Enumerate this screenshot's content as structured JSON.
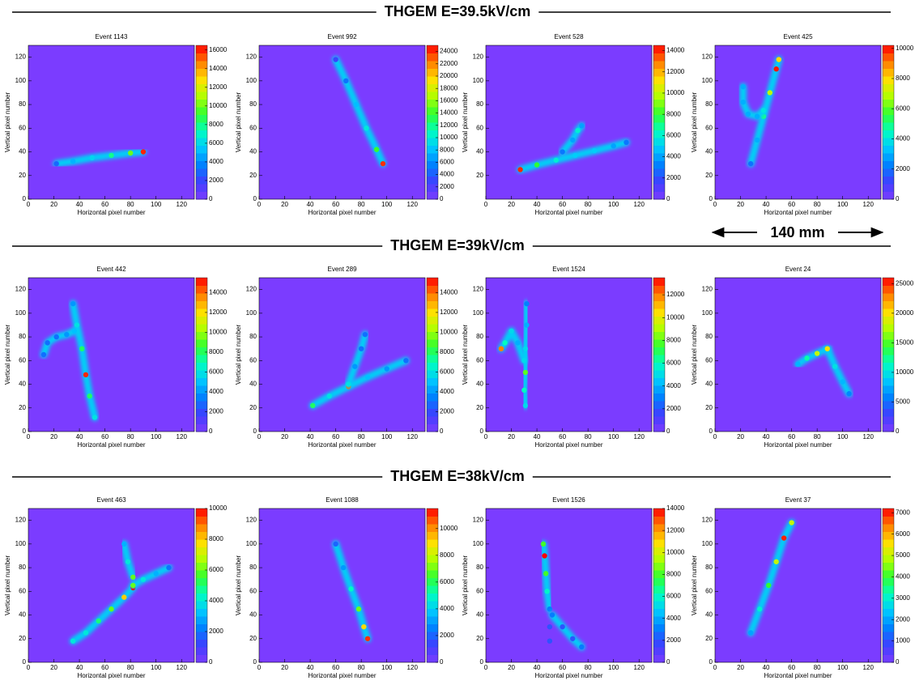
{
  "headings": [
    "THGEM E=39.5kV/cm",
    "THGEM E=39kV/cm",
    "THGEM E=38kV/cm"
  ],
  "annotation": "140 mm",
  "colormap": [
    "#7b3cff",
    "#3f3fff",
    "#0080ff",
    "#00c8ff",
    "#00ffc0",
    "#30ff30",
    "#b0ff00",
    "#ffe000",
    "#ff8000",
    "#ff0000"
  ],
  "chart_data": [
    {
      "type": "heatmap",
      "title": "Event 1143",
      "xlabel": "Horizontal pixel number",
      "ylabel": "Vertical pixel number",
      "xlim": [
        0,
        130
      ],
      "ylim": [
        0,
        130
      ],
      "xticks": [
        0,
        20,
        40,
        60,
        80,
        100,
        120
      ],
      "yticks": [
        0,
        20,
        40,
        60,
        80,
        100,
        120
      ],
      "zlim": [
        0,
        16500
      ],
      "zticks": [
        0,
        2000,
        4000,
        6000,
        8000,
        10000,
        12000,
        14000,
        16000
      ],
      "series": [
        {
          "x": [
            22,
            35,
            50,
            65,
            80,
            90
          ],
          "y": [
            30,
            32,
            35,
            37,
            39,
            40
          ],
          "values": [
            3000,
            5000,
            6000,
            8000,
            10000,
            16000
          ]
        }
      ]
    },
    {
      "type": "heatmap",
      "title": "Event 992",
      "xlabel": "Horizontal pixel number",
      "ylabel": "Vertical pixel number",
      "xlim": [
        0,
        130
      ],
      "ylim": [
        0,
        130
      ],
      "xticks": [
        0,
        20,
        40,
        60,
        80,
        100,
        120
      ],
      "yticks": [
        0,
        20,
        40,
        60,
        80,
        100,
        120
      ],
      "zlim": [
        0,
        25000
      ],
      "zticks": [
        0,
        2000,
        4000,
        6000,
        8000,
        10000,
        12000,
        14000,
        16000,
        18000,
        20000,
        22000,
        24000
      ],
      "series": [
        {
          "x": [
            60,
            68,
            76,
            84,
            92,
            97
          ],
          "y": [
            118,
            100,
            80,
            60,
            42,
            30
          ],
          "values": [
            3000,
            5000,
            8000,
            10000,
            14000,
            24000
          ]
        }
      ]
    },
    {
      "type": "heatmap",
      "title": "Event 528",
      "xlabel": "Horizontal pixel number",
      "ylabel": "Vertical pixel number",
      "xlim": [
        0,
        130
      ],
      "ylim": [
        0,
        130
      ],
      "xticks": [
        0,
        20,
        40,
        60,
        80,
        100,
        120
      ],
      "yticks": [
        20,
        40,
        60,
        80,
        100,
        120
      ],
      "zlim": [
        0,
        14500
      ],
      "zticks": [
        0,
        2000,
        4000,
        6000,
        8000,
        10000,
        12000,
        14000
      ],
      "series": [
        {
          "x": [
            27,
            40,
            55,
            70,
            85,
            100,
            110
          ],
          "y": [
            25,
            29,
            33,
            37,
            41,
            45,
            48
          ],
          "values": [
            14000,
            8000,
            6000,
            5000,
            5000,
            4000,
            3000
          ]
        },
        {
          "x": [
            60,
            68,
            72,
            75
          ],
          "y": [
            40,
            50,
            58,
            62
          ],
          "values": [
            3000,
            4000,
            6000,
            4000
          ]
        }
      ]
    },
    {
      "type": "heatmap",
      "title": "Event 425",
      "xlabel": "Horizontal pixel number",
      "ylabel": "Vertical pixel number",
      "xlim": [
        0,
        130
      ],
      "ylim": [
        0,
        130
      ],
      "xticks": [
        0,
        20,
        40,
        60,
        80,
        100,
        120
      ],
      "yticks": [
        0,
        20,
        40,
        60,
        80,
        100,
        120
      ],
      "zlim": [
        0,
        10200
      ],
      "zticks": [
        0,
        2000,
        4000,
        6000,
        8000,
        10000
      ],
      "series": [
        {
          "x": [
            28,
            33,
            38,
            43,
            48,
            50
          ],
          "y": [
            30,
            50,
            70,
            90,
            110,
            118
          ],
          "values": [
            2000,
            3000,
            5000,
            7000,
            10000,
            8000
          ]
        },
        {
          "x": [
            22,
            22,
            26,
            33,
            38
          ],
          "y": [
            95,
            82,
            72,
            70,
            75
          ],
          "values": [
            3000,
            3000,
            3000,
            3000,
            4000
          ]
        }
      ]
    },
    {
      "type": "heatmap",
      "title": "Event 442",
      "xlabel": "Horizontal pixel number",
      "ylabel": "Vertical pixel number",
      "xlim": [
        0,
        130
      ],
      "ylim": [
        0,
        130
      ],
      "xticks": [
        0,
        20,
        40,
        60,
        80,
        100,
        120
      ],
      "yticks": [
        0,
        20,
        40,
        60,
        80,
        100,
        120
      ],
      "zlim": [
        0,
        15500
      ],
      "zticks": [
        0,
        2000,
        4000,
        6000,
        8000,
        10000,
        12000,
        14000
      ],
      "series": [
        {
          "x": [
            35,
            38,
            42,
            45,
            48,
            52
          ],
          "y": [
            108,
            90,
            70,
            48,
            30,
            12
          ],
          "values": [
            4000,
            6000,
            8000,
            15000,
            8000,
            6000
          ]
        },
        {
          "x": [
            12,
            15,
            22,
            30,
            36
          ],
          "y": [
            65,
            75,
            80,
            82,
            85
          ],
          "values": [
            3000,
            3000,
            3000,
            4000,
            5000
          ]
        }
      ]
    },
    {
      "type": "heatmap",
      "title": "Event 289",
      "xlabel": "Horizontal pixel number",
      "ylabel": "Vertical pixel number",
      "xlim": [
        0,
        130
      ],
      "ylim": [
        0,
        130
      ],
      "xticks": [
        0,
        20,
        40,
        60,
        80,
        100,
        120
      ],
      "yticks": [
        0,
        20,
        40,
        60,
        80,
        100,
        120
      ],
      "zlim": [
        0,
        15500
      ],
      "zticks": [
        0,
        2000,
        4000,
        6000,
        8000,
        10000,
        12000,
        14000
      ],
      "series": [
        {
          "x": [
            42,
            55,
            70,
            85,
            100,
            115
          ],
          "y": [
            22,
            30,
            38,
            46,
            53,
            60
          ],
          "values": [
            8000,
            6000,
            14000,
            5000,
            4000,
            3000
          ]
        },
        {
          "x": [
            70,
            75,
            80,
            83
          ],
          "y": [
            40,
            55,
            70,
            82
          ],
          "values": [
            6000,
            4000,
            3000,
            3000
          ]
        }
      ]
    },
    {
      "type": "heatmap",
      "title": "Event 1524",
      "xlabel": "Horizontal pixel number",
      "ylabel": "Vertical pixel number",
      "xlim": [
        0,
        130
      ],
      "ylim": [
        0,
        130
      ],
      "xticks": [
        0,
        20,
        40,
        60,
        80,
        100,
        120
      ],
      "yticks": [
        0,
        20,
        40,
        60,
        80,
        100,
        120
      ],
      "zlim": [
        0,
        13500
      ],
      "zticks": [
        0,
        2000,
        4000,
        6000,
        8000,
        10000,
        12000
      ],
      "series": [
        {
          "x": [
            32,
            32,
            31,
            31,
            30,
            31
          ],
          "y": [
            108,
            90,
            70,
            50,
            35,
            22
          ],
          "values": [
            3000,
            4000,
            5000,
            8000,
            6000,
            5000
          ]
        },
        {
          "x": [
            12,
            15,
            20,
            25,
            30
          ],
          "y": [
            70,
            75,
            85,
            75,
            60
          ],
          "values": [
            12000,
            6000,
            5000,
            4000,
            5000
          ]
        }
      ]
    },
    {
      "type": "heatmap",
      "title": "Event 24",
      "xlabel": "Horizontal pixel number",
      "ylabel": "Vertical pixel number",
      "xlim": [
        0,
        130
      ],
      "ylim": [
        0,
        130
      ],
      "xticks": [
        0,
        20,
        40,
        60,
        80,
        100,
        120
      ],
      "yticks": [
        0,
        20,
        40,
        60,
        80,
        100,
        120
      ],
      "zlim": [
        0,
        26000
      ],
      "zticks": [
        0,
        5000,
        10000,
        15000,
        20000,
        25000
      ],
      "series": [
        {
          "x": [
            65,
            72,
            80,
            88
          ],
          "y": [
            57,
            62,
            66,
            70
          ],
          "values": [
            8000,
            12000,
            18000,
            25000
          ]
        },
        {
          "x": [
            88,
            94,
            100,
            105
          ],
          "y": [
            70,
            55,
            42,
            32
          ],
          "values": [
            20000,
            10000,
            8000,
            6000
          ]
        }
      ]
    },
    {
      "type": "heatmap",
      "title": "Event 463",
      "xlabel": "Horizontal pixel number",
      "ylabel": "Vertical pixel number",
      "xlim": [
        0,
        130
      ],
      "ylim": [
        0,
        130
      ],
      "xticks": [
        0,
        20,
        40,
        60,
        80,
        100,
        120
      ],
      "yticks": [
        0,
        20,
        40,
        60,
        80,
        100,
        120
      ],
      "zlim": [
        0,
        10000
      ],
      "zticks": [
        0,
        2000,
        4000,
        6000,
        8000,
        10000
      ],
      "series": [
        {
          "x": [
            35,
            45,
            55,
            65,
            75,
            82
          ],
          "y": [
            18,
            25,
            35,
            45,
            55,
            63
          ],
          "values": [
            4000,
            4000,
            5000,
            6000,
            8000,
            10000
          ]
        },
        {
          "x": [
            82,
            90,
            100,
            110
          ],
          "y": [
            65,
            70,
            75,
            80
          ],
          "values": [
            6000,
            4000,
            3000,
            2000
          ]
        },
        {
          "x": [
            75,
            78,
            82
          ],
          "y": [
            100,
            85,
            72
          ],
          "values": [
            3000,
            4000,
            6000
          ]
        }
      ]
    },
    {
      "type": "heatmap",
      "title": "Event 1088",
      "xlabel": "Horizontal pixel number",
      "ylabel": "Vertical pixel number",
      "xlim": [
        0,
        130
      ],
      "ylim": [
        0,
        130
      ],
      "xticks": [
        0,
        20,
        40,
        60,
        80,
        100,
        120
      ],
      "yticks": [
        0,
        20,
        40,
        60,
        80,
        100,
        120
      ],
      "zlim": [
        0,
        11500
      ],
      "zticks": [
        0,
        2000,
        4000,
        6000,
        8000,
        10000
      ],
      "series": [
        {
          "x": [
            60,
            66,
            72,
            78,
            82,
            85
          ],
          "y": [
            100,
            80,
            62,
            45,
            30,
            20
          ],
          "values": [
            2000,
            3000,
            5000,
            7000,
            9000,
            11000
          ]
        }
      ]
    },
    {
      "type": "heatmap",
      "title": "Event 1526",
      "xlabel": "Horizontal pixel number",
      "ylabel": "Vertical pixel number",
      "xlim": [
        0,
        130
      ],
      "ylim": [
        0,
        130
      ],
      "xticks": [
        0,
        20,
        40,
        60,
        80,
        100,
        120
      ],
      "yticks": [
        0,
        20,
        40,
        60,
        80,
        100,
        120
      ],
      "zlim": [
        0,
        14000
      ],
      "zticks": [
        0,
        2000,
        4000,
        6000,
        8000,
        10000,
        12000,
        14000
      ],
      "series": [
        {
          "x": [
            45,
            46,
            47,
            48,
            50
          ],
          "y": [
            100,
            90,
            75,
            60,
            45
          ],
          "values": [
            8000,
            14000,
            8000,
            6000,
            4000
          ]
        },
        {
          "x": [
            50,
            50,
            50
          ],
          "y": [
            45,
            30,
            18
          ],
          "values": [
            3000,
            2000,
            2000
          ]
        },
        {
          "x": [
            52,
            60,
            68,
            75
          ],
          "y": [
            40,
            30,
            20,
            13
          ],
          "values": [
            3000,
            2000,
            2000,
            3000
          ]
        }
      ]
    },
    {
      "type": "heatmap",
      "title": "Event 37",
      "xlabel": "Horizontal pixel number",
      "ylabel": "Vertical pixel number",
      "xlim": [
        0,
        130
      ],
      "ylim": [
        0,
        130
      ],
      "xticks": [
        0,
        20,
        40,
        60,
        80,
        100,
        120
      ],
      "yticks": [
        0,
        20,
        40,
        60,
        80,
        100,
        120
      ],
      "zlim": [
        0,
        7200
      ],
      "zticks": [
        0,
        1000,
        2000,
        3000,
        4000,
        5000,
        6000,
        7000
      ],
      "series": [
        {
          "x": [
            28,
            35,
            42,
            48,
            54,
            60
          ],
          "y": [
            25,
            45,
            65,
            85,
            105,
            118
          ],
          "values": [
            2000,
            3000,
            4000,
            5000,
            7000,
            5000
          ]
        }
      ]
    }
  ]
}
